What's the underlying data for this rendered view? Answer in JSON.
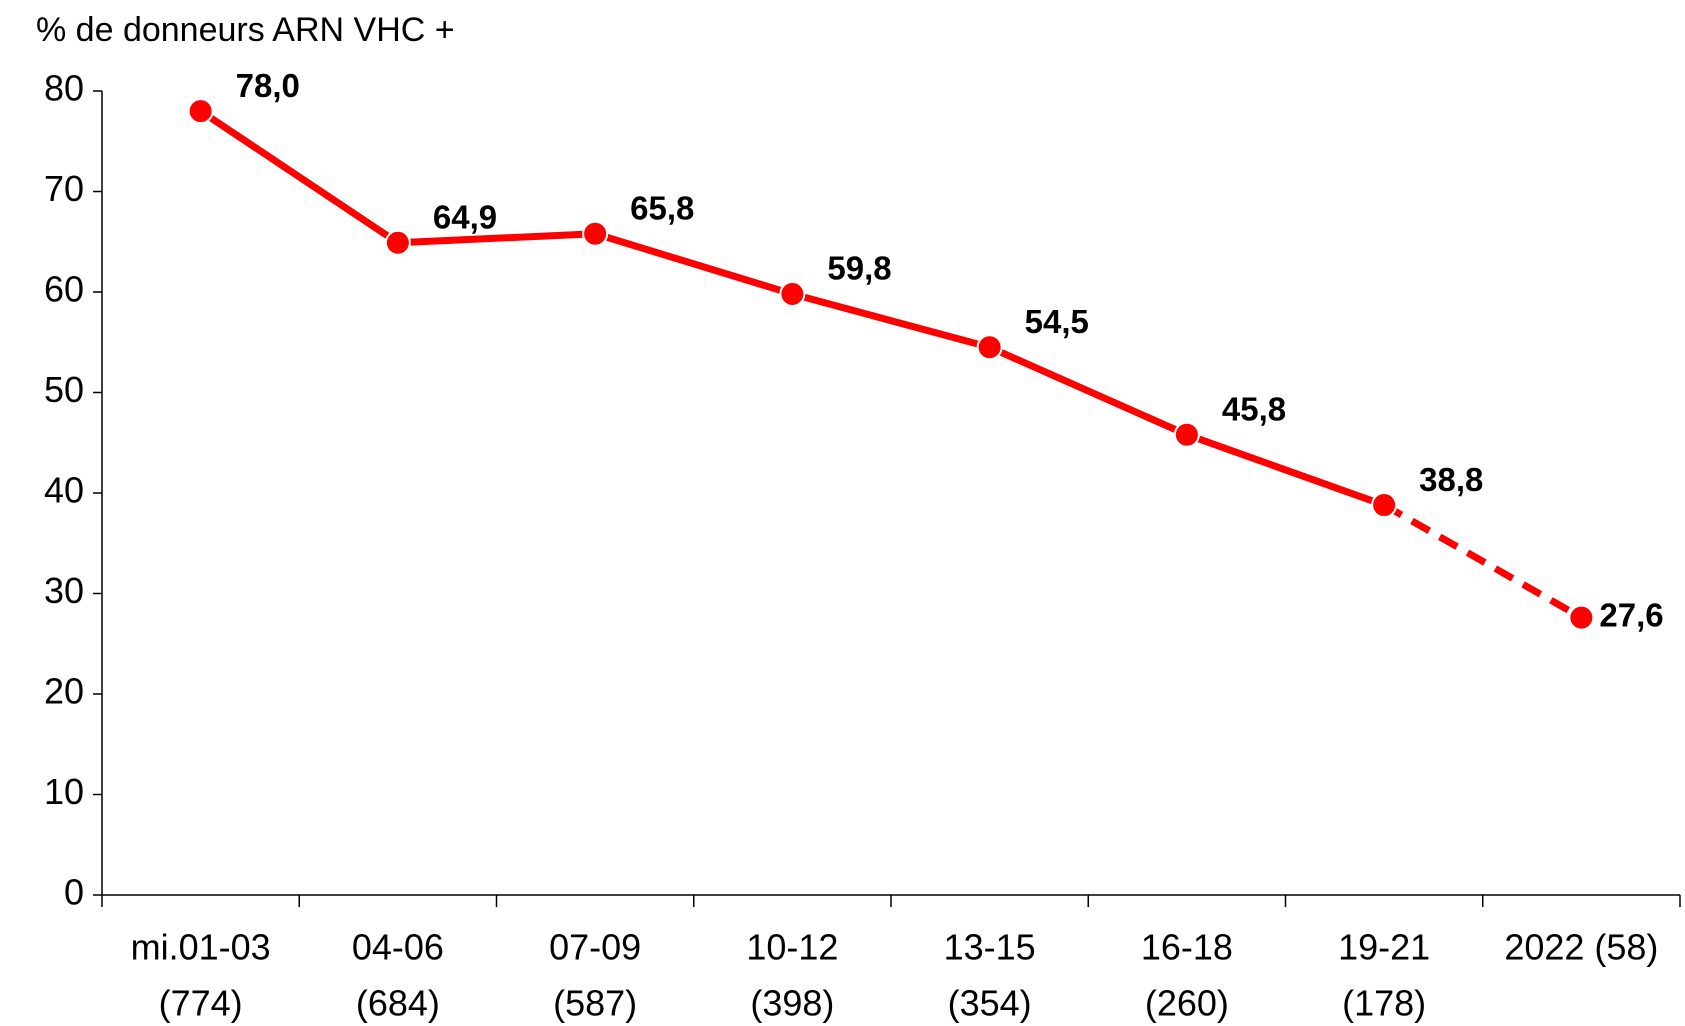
{
  "chart_data": {
    "type": "line",
    "y_axis_label": "% de donneurs ARN VHC +",
    "categories": [
      [
        "mi.01-03",
        "(774)"
      ],
      [
        "04-06",
        "(684)"
      ],
      [
        "07-09",
        "(587)"
      ],
      [
        "10-12",
        "(398)"
      ],
      [
        "13-15",
        "(354)"
      ],
      [
        "16-18",
        "(260)"
      ],
      [
        "19-21",
        "(178)"
      ],
      [
        "2022 (58)"
      ]
    ],
    "values": [
      78.0,
      64.9,
      65.8,
      59.8,
      54.5,
      45.8,
      38.8,
      27.6
    ],
    "value_labels": [
      "78,0",
      "64,9",
      "65,8",
      "59,8",
      "54,5",
      "45,8",
      "38,8",
      "27,6"
    ],
    "color": "#ff0000",
    "last_segment_dashed": true,
    "ylim": [
      0,
      80
    ],
    "yticks": [
      0,
      10,
      20,
      30,
      40,
      50,
      60,
      70,
      80
    ],
    "grid": false
  }
}
